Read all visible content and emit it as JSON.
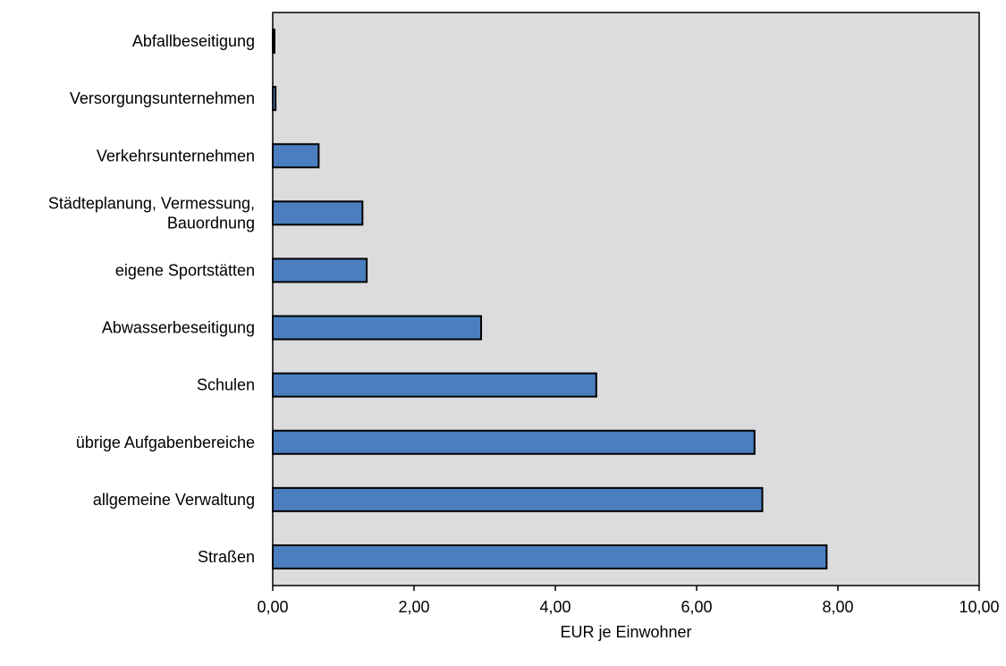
{
  "chart_data": {
    "type": "bar",
    "orientation": "horizontal",
    "categories": [
      [
        "Abfallbeseitigung"
      ],
      [
        "Versorgungsunternehmen"
      ],
      [
        "Verkehrsunternehmen"
      ],
      [
        "Städteplanung, Vermessung,",
        "Bauordnung"
      ],
      [
        "eigene Sportstätten"
      ],
      [
        "Abwasserbeseitigung"
      ],
      [
        "Schulen"
      ],
      [
        "übrige Aufgabenbereiche"
      ],
      [
        "allgemeine Verwaltung"
      ],
      [
        "Straßen"
      ]
    ],
    "values": [
      0.02,
      0.04,
      0.65,
      1.27,
      1.33,
      2.95,
      4.58,
      6.82,
      6.93,
      7.84
    ],
    "xlim": [
      0,
      10
    ],
    "x_ticks": [
      0,
      2,
      4,
      6,
      8,
      10
    ],
    "x_tick_labels": [
      "0,00",
      "2,00",
      "4,00",
      "6,00",
      "8,00",
      "10,00"
    ],
    "xlabel": "EUR je Einwohner",
    "title": "",
    "grid": false,
    "colors": {
      "bar_fill": "#4a7ebf",
      "bar_stroke": "#000000",
      "plot_background": "#dcdcdf"
    }
  }
}
